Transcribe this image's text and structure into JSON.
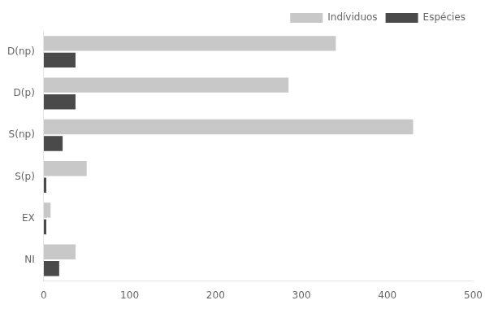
{
  "chart_data": {
    "type": "bar",
    "orientation": "horizontal",
    "categories": [
      "D(np)",
      "D(p)",
      "S(np)",
      "S(p)",
      "EX",
      "NI"
    ],
    "series": [
      {
        "name": "Indíviduos",
        "color": "#c8c8c8",
        "values": [
          340,
          285,
          430,
          50,
          8,
          37
        ]
      },
      {
        "name": "Espécies",
        "color": "#4a4a4a",
        "values": [
          37,
          37,
          22,
          3,
          3,
          18
        ]
      }
    ],
    "xlim": [
      0,
      500
    ],
    "xticks": [
      0,
      100,
      200,
      300,
      400,
      500
    ],
    "grid": false,
    "legend": "upper right"
  }
}
